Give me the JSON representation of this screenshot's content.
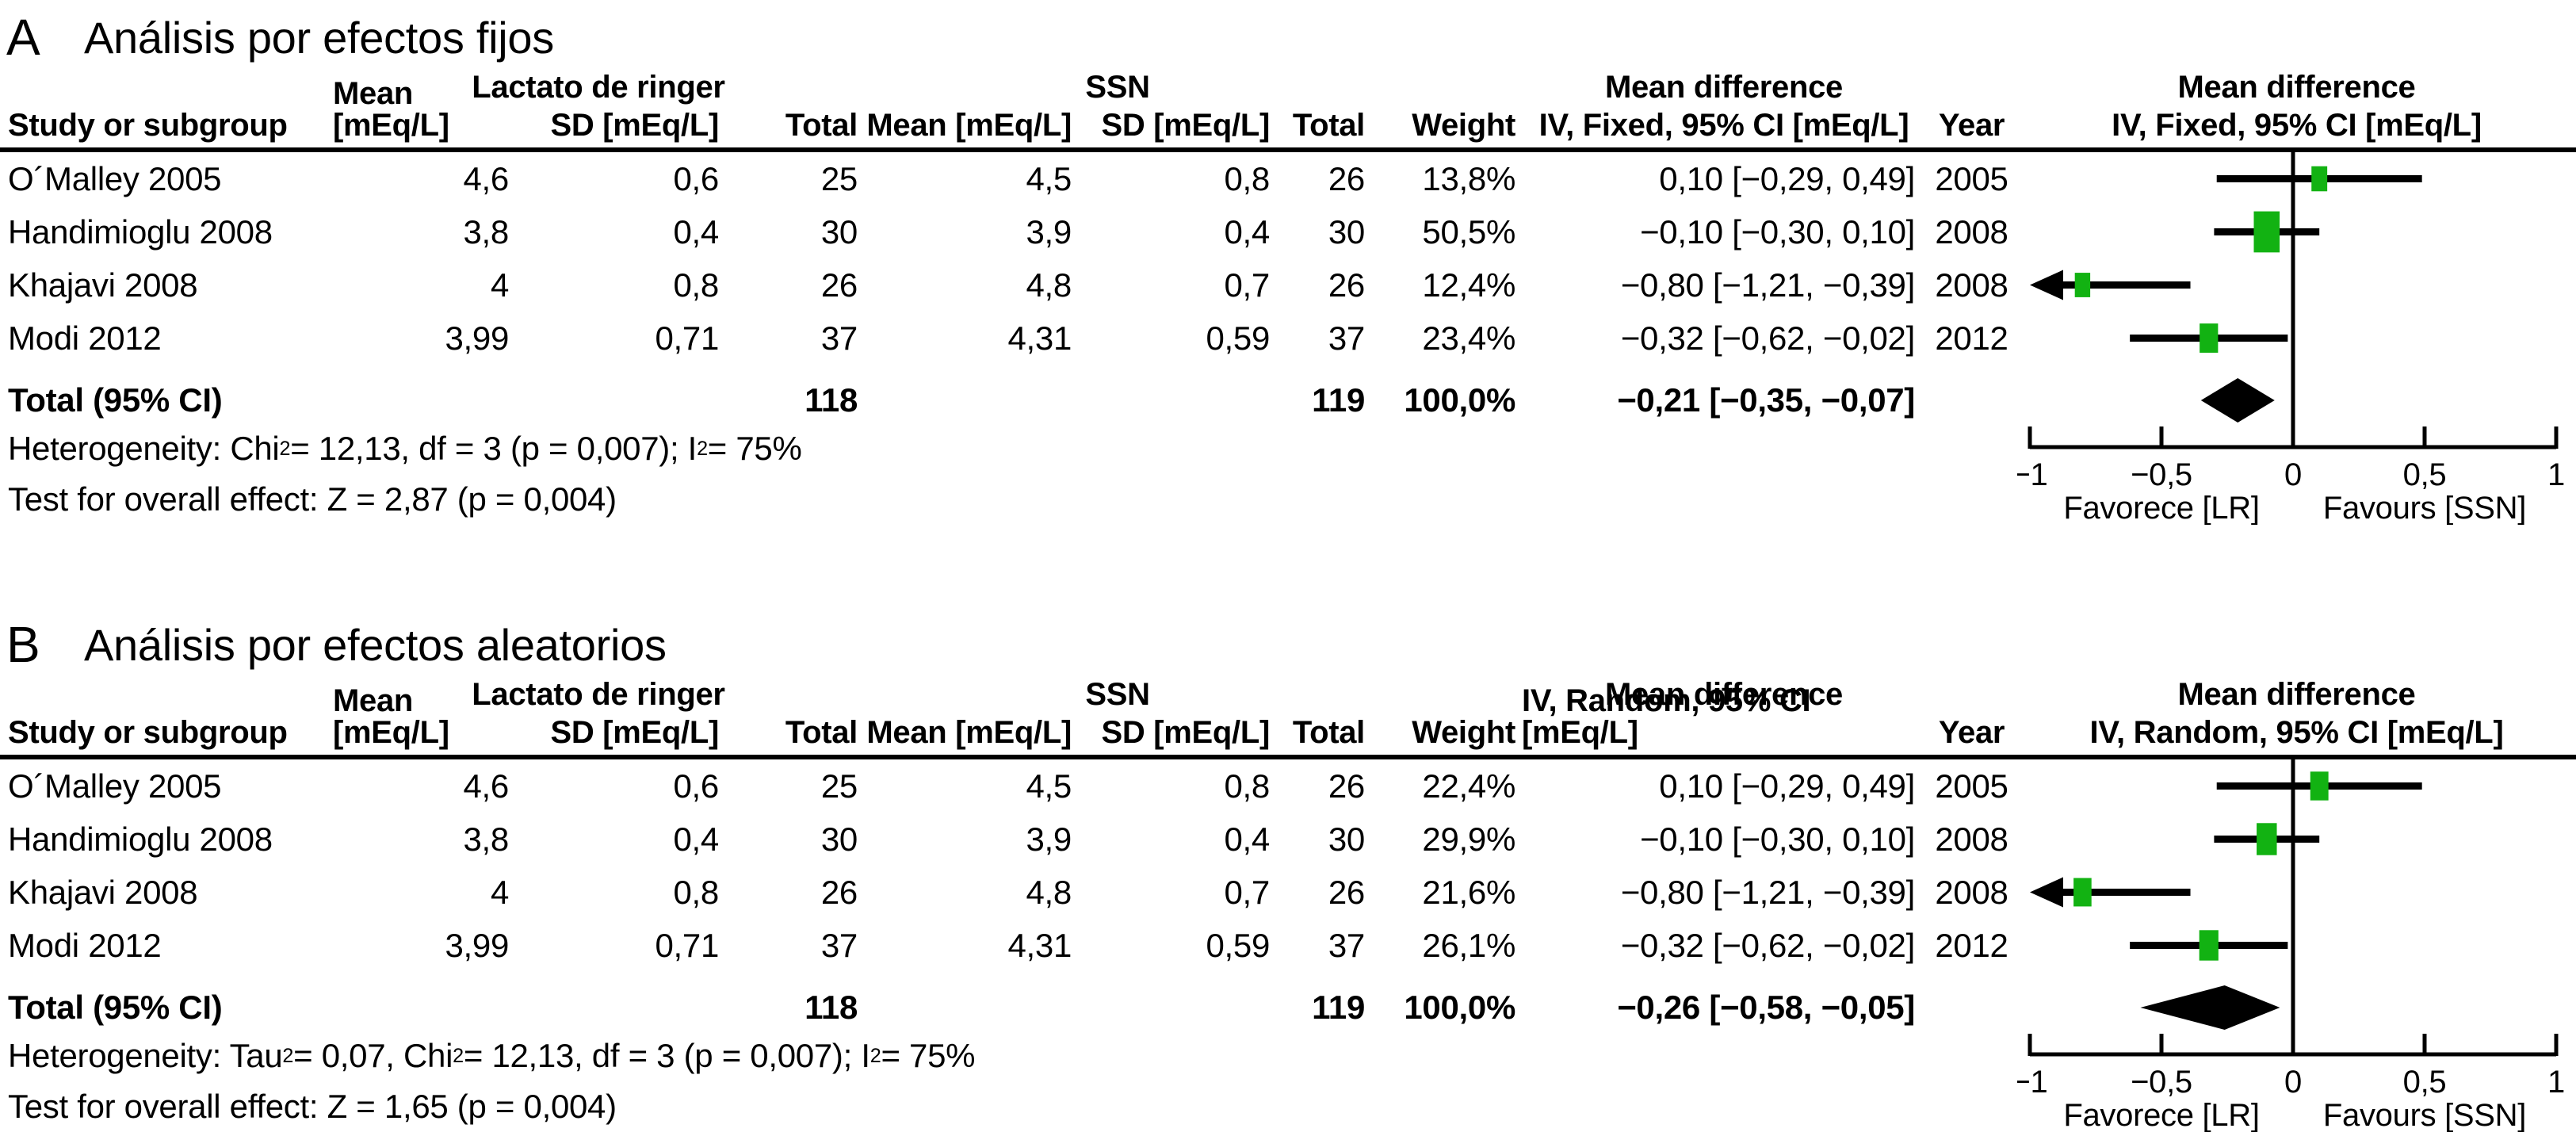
{
  "panels": [
    {
      "letter": "A",
      "title": "Análisis por efectos fijos",
      "group_lr": "Lactato de ringer",
      "group_ssn": "SSN",
      "col_study": "Study or subgroup",
      "col_mean": "Mean [mEq/L]",
      "col_sd": "SD [mEq/L]",
      "col_total": "Total",
      "col_weight": "Weight",
      "col_year": "Year",
      "md_header_line1": "Mean difference",
      "md_header_line2": "IV, Fixed, 95% CI [mEq/L]",
      "studies": [
        {
          "name": "O´Malley 2005",
          "lr_mean": "4,6",
          "lr_sd": "0,6",
          "lr_total": "25",
          "ssn_mean": "4,5",
          "ssn_sd": "0,8",
          "ssn_total": "26",
          "weight": "13,8%",
          "ci": "0,10 [−0,29, 0,49]",
          "year": "2005"
        },
        {
          "name": "Handimioglu 2008",
          "lr_mean": "3,8",
          "lr_sd": "0,4",
          "lr_total": "30",
          "ssn_mean": "3,9",
          "ssn_sd": "0,4",
          "ssn_total": "30",
          "weight": "50,5%",
          "ci": "−0,10 [−0,30, 0,10]",
          "year": "2008"
        },
        {
          "name": "Khajavi 2008",
          "lr_mean": "4",
          "lr_sd": "0,8",
          "lr_total": "26",
          "ssn_mean": "4,8",
          "ssn_sd": "0,7",
          "ssn_total": "26",
          "weight": "12,4%",
          "ci": "−0,80 [−1,21, −0,39]",
          "year": "2008"
        },
        {
          "name": "Modi 2012",
          "lr_mean": "3,99",
          "lr_sd": "0,71",
          "lr_total": "37",
          "ssn_mean": "4,31",
          "ssn_sd": "0,59",
          "ssn_total": "37",
          "weight": "23,4%",
          "ci": "−0,32 [−0,62, −0,02]",
          "year": "2012"
        }
      ],
      "total_label": "Total (95% CI)",
      "total_lr": "118",
      "total_ssn": "119",
      "total_weight": "100,0%",
      "total_ci": "−0,21 [−0,35, −0,07]",
      "heterogeneity": [
        {
          "t": "Heterogeneity: Chi"
        },
        {
          "t": "2",
          "sup": true
        },
        {
          "t": " = 12,13, df = 3 (p = 0,007); I"
        },
        {
          "t": "2",
          "sup": true
        },
        {
          "t": " = 75%"
        }
      ],
      "overall_effect": "Test for overall effect: Z = 2,87 (p = 0,004)",
      "axis_ticks": [
        "−1",
        "−0,5",
        "0",
        "0,5",
        "1"
      ],
      "favours_left": "Favorece [LR]",
      "favours_right": "Favours [SSN]"
    },
    {
      "letter": "B",
      "title": "Análisis por efectos aleatorios",
      "group_lr": "Lactato de ringer",
      "group_ssn": "SSN",
      "col_study": "Study or subgroup",
      "col_mean": "Mean [mEq/L]",
      "col_sd": "SD [mEq/L]",
      "col_total": "Total",
      "col_weight": "Weight",
      "col_year": "Year",
      "md_header_line1": "Mean difference",
      "md_header_line2": "IV, Random, 95% CI [mEq/L]",
      "studies": [
        {
          "name": "O´Malley 2005",
          "lr_mean": "4,6",
          "lr_sd": "0,6",
          "lr_total": "25",
          "ssn_mean": "4,5",
          "ssn_sd": "0,8",
          "ssn_total": "26",
          "weight": "22,4%",
          "ci": "0,10 [−0,29, 0,49]",
          "year": "2005"
        },
        {
          "name": "Handimioglu 2008",
          "lr_mean": "3,8",
          "lr_sd": "0,4",
          "lr_total": "30",
          "ssn_mean": "3,9",
          "ssn_sd": "0,4",
          "ssn_total": "30",
          "weight": "29,9%",
          "ci": "−0,10 [−0,30, 0,10]",
          "year": "2008"
        },
        {
          "name": "Khajavi 2008",
          "lr_mean": "4",
          "lr_sd": "0,8",
          "lr_total": "26",
          "ssn_mean": "4,8",
          "ssn_sd": "0,7",
          "ssn_total": "26",
          "weight": "21,6%",
          "ci": "−0,80 [−1,21, −0,39]",
          "year": "2008"
        },
        {
          "name": "Modi 2012",
          "lr_mean": "3,99",
          "lr_sd": "0,71",
          "lr_total": "37",
          "ssn_mean": "4,31",
          "ssn_sd": "0,59",
          "ssn_total": "37",
          "weight": "26,1%",
          "ci": "−0,32 [−0,62, −0,02]",
          "year": "2012"
        }
      ],
      "total_label": "Total (95% CI)",
      "total_lr": "118",
      "total_ssn": "119",
      "total_weight": "100,0%",
      "total_ci": "−0,26 [−0,58, −0,05]",
      "heterogeneity": [
        {
          "t": "Heterogeneity: Tau"
        },
        {
          "t": "2",
          "sup": true
        },
        {
          "t": " = 0,07, Chi"
        },
        {
          "t": "2",
          "sup": true
        },
        {
          "t": " = 12,13, df = 3 (p = 0,007); I"
        },
        {
          "t": "2",
          "sup": true
        },
        {
          "t": " = 75%"
        }
      ],
      "overall_effect": "Test for overall effect: Z = 1,65 (p = 0,004)",
      "axis_ticks": [
        "−1",
        "−0,5",
        "0",
        "0,5",
        "1"
      ],
      "favours_left": "Favorece [LR]",
      "favours_right": "Favours [SSN]"
    }
  ],
  "chart_data": [
    {
      "type": "scatter",
      "subtype": "forest-plot",
      "title": "Análisis por efectos fijos",
      "xlabel": "Mean difference IV, Fixed, 95% CI [mEq/L]",
      "xlim": [
        -1,
        1
      ],
      "xticks": [
        -1,
        -0.5,
        0,
        0.5,
        1
      ],
      "favours_left": "Favorece [LR]",
      "favours_right": "Favours [SSN]",
      "marker_color": "#12b212",
      "diamond_color": "#000000",
      "series": [
        {
          "study": "O´Malley 2005",
          "year": 2005,
          "estimate": 0.1,
          "ci_low": -0.29,
          "ci_high": 0.49,
          "weight_pct": 13.8
        },
        {
          "study": "Handimioglu 2008",
          "year": 2008,
          "estimate": -0.1,
          "ci_low": -0.3,
          "ci_high": 0.1,
          "weight_pct": 50.5
        },
        {
          "study": "Khajavi 2008",
          "year": 2008,
          "estimate": -0.8,
          "ci_low": -1.21,
          "ci_high": -0.39,
          "weight_pct": 12.4
        },
        {
          "study": "Modi 2012",
          "year": 2012,
          "estimate": -0.32,
          "ci_low": -0.62,
          "ci_high": -0.02,
          "weight_pct": 23.4
        }
      ],
      "total": {
        "estimate": -0.21,
        "ci_low": -0.35,
        "ci_high": -0.07,
        "weight_pct": 100.0
      }
    },
    {
      "type": "scatter",
      "subtype": "forest-plot",
      "title": "Análisis por efectos aleatorios",
      "xlabel": "Mean difference IV, Random, 95% CI [mEq/L]",
      "xlim": [
        -1,
        1
      ],
      "xticks": [
        -1,
        -0.5,
        0,
        0.5,
        1
      ],
      "favours_left": "Favorece [LR]",
      "favours_right": "Favours [SSN]",
      "marker_color": "#12b212",
      "diamond_color": "#000000",
      "series": [
        {
          "study": "O´Malley 2005",
          "year": 2005,
          "estimate": 0.1,
          "ci_low": -0.29,
          "ci_high": 0.49,
          "weight_pct": 22.4
        },
        {
          "study": "Handimioglu 2008",
          "year": 2008,
          "estimate": -0.1,
          "ci_low": -0.3,
          "ci_high": 0.1,
          "weight_pct": 29.9
        },
        {
          "study": "Khajavi 2008",
          "year": 2008,
          "estimate": -0.8,
          "ci_low": -1.21,
          "ci_high": -0.39,
          "weight_pct": 21.6
        },
        {
          "study": "Modi 2012",
          "year": 2012,
          "estimate": -0.32,
          "ci_low": -0.62,
          "ci_high": -0.02,
          "weight_pct": 26.1
        }
      ],
      "total": {
        "estimate": -0.26,
        "ci_low": -0.58,
        "ci_high": -0.05,
        "weight_pct": 100.0
      }
    }
  ]
}
